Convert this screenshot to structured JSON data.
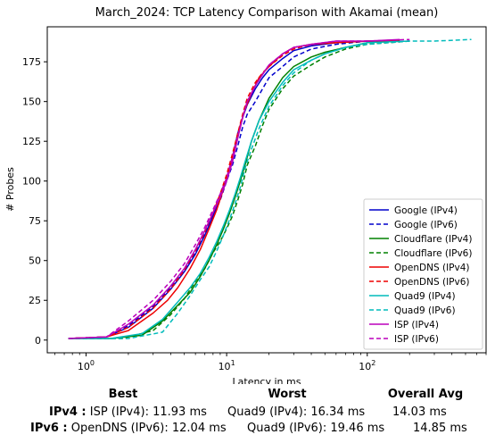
{
  "chart_data": {
    "type": "line",
    "title": "March_2024: TCP Latency Comparison with Akamai (mean)",
    "xlabel": "Latency in ms",
    "ylabel": "# Probes",
    "xscale": "log",
    "xlim": [
      0.53,
      700
    ],
    "ylim": [
      -8,
      197
    ],
    "x_ticks": [
      {
        "value": 1,
        "base": "10",
        "exp": "0"
      },
      {
        "value": 10,
        "base": "10",
        "exp": "1"
      },
      {
        "value": 100,
        "base": "10",
        "exp": "2"
      }
    ],
    "y_ticks": [
      0,
      25,
      50,
      75,
      100,
      125,
      150,
      175
    ],
    "grid": false,
    "legend_position": "bottom-right",
    "series": [
      {
        "name": "Google (IPv4)",
        "color": "#0000cc",
        "dash": "solid",
        "x": [
          0.75,
          1.4,
          2.0,
          3.0,
          4.0,
          5.0,
          6.0,
          7.0,
          8.0,
          9.0,
          10.0,
          11.0,
          12.0,
          13.0,
          14.0,
          16.0,
          18.0,
          20.0,
          25.0,
          30.0,
          40.0,
          60.0,
          100.0,
          170.0
        ],
        "y": [
          1,
          2,
          8,
          20,
          32,
          43,
          54,
          66,
          78,
          90,
          102,
          115,
          130,
          140,
          148,
          158,
          165,
          170,
          177,
          182,
          185,
          187,
          188,
          188
        ]
      },
      {
        "name": "Google (IPv6)",
        "color": "#0000cc",
        "dash": "dashed",
        "x": [
          0.75,
          1.4,
          2.0,
          3.0,
          4.0,
          5.0,
          6.0,
          7.0,
          8.0,
          9.0,
          10.0,
          11.0,
          12.0,
          13.0,
          14.0,
          16.0,
          18.0,
          20.0,
          25.0,
          30.0,
          40.0,
          60.0,
          100.0,
          170.0
        ],
        "y": [
          1,
          2,
          9,
          21,
          33,
          44,
          55,
          67,
          78,
          88,
          100,
          110,
          122,
          134,
          142,
          150,
          158,
          165,
          172,
          178,
          183,
          186,
          188,
          188
        ]
      },
      {
        "name": "Cloudflare (IPv4)",
        "color": "#008000",
        "dash": "solid",
        "x": [
          0.75,
          1.5,
          2.5,
          3.5,
          4.5,
          5.5,
          6.5,
          7.5,
          8.5,
          9.5,
          10.5,
          11.5,
          12.5,
          13.5,
          15.0,
          17.0,
          20.0,
          25.0,
          30.0,
          40.0,
          50.0,
          70.0,
          100.0,
          170.0
        ],
        "y": [
          1,
          1,
          3,
          12,
          22,
          30,
          40,
          50,
          60,
          70,
          80,
          90,
          100,
          110,
          125,
          138,
          152,
          165,
          172,
          178,
          181,
          184,
          187,
          188
        ]
      },
      {
        "name": "Cloudflare (IPv6)",
        "color": "#008000",
        "dash": "dashed",
        "x": [
          0.75,
          1.8,
          3.0,
          4.0,
          5.0,
          6.0,
          7.0,
          8.0,
          9.0,
          10.0,
          11.0,
          12.0,
          13.0,
          14.0,
          16.0,
          18.0,
          20.0,
          25.0,
          30.0,
          40.0,
          50.0,
          70.0,
          100.0,
          200.0
        ],
        "y": [
          1,
          1,
          6,
          16,
          26,
          37,
          45,
          55,
          62,
          70,
          78,
          88,
          98,
          110,
          122,
          135,
          145,
          158,
          166,
          173,
          178,
          183,
          186,
          188
        ]
      },
      {
        "name": "OpenDNS (IPv4)",
        "color": "#ee0000",
        "dash": "solid",
        "x": [
          0.75,
          1.4,
          2.0,
          3.0,
          3.8,
          4.5,
          5.5,
          6.5,
          7.5,
          8.5,
          9.5,
          10.5,
          11.5,
          12.5,
          13.5,
          15.0,
          17.0,
          20.0,
          25.0,
          30.0,
          40.0,
          60.0,
          100.0,
          170.0
        ],
        "y": [
          1,
          2,
          6,
          17,
          25,
          33,
          45,
          57,
          70,
          82,
          95,
          108,
          122,
          135,
          145,
          155,
          165,
          172,
          180,
          184,
          186,
          187,
          188,
          188
        ]
      },
      {
        "name": "OpenDNS (IPv6)",
        "color": "#ee0000",
        "dash": "dashed",
        "x": [
          0.75,
          1.4,
          2.0,
          3.0,
          4.0,
          5.0,
          6.0,
          7.0,
          8.0,
          9.0,
          10.0,
          11.0,
          12.0,
          13.0,
          14.0,
          16.0,
          18.0,
          20.0,
          25.0,
          30.0,
          40.0,
          60.0,
          100.0,
          170.0
        ],
        "y": [
          1,
          2,
          8,
          20,
          32,
          44,
          56,
          68,
          80,
          92,
          104,
          117,
          130,
          142,
          152,
          162,
          168,
          172,
          179,
          183,
          186,
          187,
          188,
          188
        ]
      },
      {
        "name": "Quad9 (IPv4)",
        "color": "#00bbbb",
        "dash": "solid",
        "x": [
          0.75,
          1.5,
          2.5,
          3.5,
          4.5,
          5.5,
          6.5,
          7.5,
          8.5,
          9.5,
          10.5,
          11.5,
          12.5,
          13.5,
          15.0,
          17.0,
          20.0,
          25.0,
          30.0,
          40.0,
          50.0,
          70.0,
          100.0,
          200.0
        ],
        "y": [
          1,
          1,
          4,
          13,
          24,
          33,
          42,
          52,
          62,
          72,
          82,
          92,
          102,
          112,
          125,
          138,
          150,
          162,
          170,
          176,
          180,
          184,
          187,
          188
        ]
      },
      {
        "name": "Quad9 (IPv6)",
        "color": "#00bbbb",
        "dash": "dashed",
        "x": [
          0.75,
          2.0,
          3.5,
          4.5,
          5.5,
          6.5,
          7.5,
          8.5,
          9.5,
          10.5,
          11.5,
          12.5,
          13.5,
          15.0,
          17.0,
          20.0,
          25.0,
          30.0,
          40.0,
          50.0,
          70.0,
          100.0,
          200.0,
          300.0,
          550.0
        ],
        "y": [
          1,
          1,
          5,
          17,
          28,
          38,
          46,
          56,
          66,
          76,
          86,
          96,
          108,
          120,
          133,
          147,
          160,
          168,
          176,
          180,
          184,
          186,
          188,
          188,
          189
        ]
      },
      {
        "name": "ISP (IPv4)",
        "color": "#bb00bb",
        "dash": "solid",
        "x": [
          0.75,
          1.4,
          2.0,
          3.0,
          4.0,
          5.0,
          6.0,
          7.0,
          8.0,
          9.0,
          10.0,
          11.0,
          12.0,
          13.0,
          14.0,
          16.0,
          18.0,
          20.0,
          25.0,
          30.0,
          40.0,
          60.0,
          100.0,
          170.0
        ],
        "y": [
          1,
          2,
          10,
          22,
          34,
          45,
          57,
          69,
          80,
          90,
          100,
          112,
          127,
          140,
          150,
          160,
          167,
          173,
          180,
          184,
          186,
          188,
          188,
          189
        ]
      },
      {
        "name": "ISP (IPv6)",
        "color": "#bb00bb",
        "dash": "dashed",
        "x": [
          0.75,
          1.4,
          2.0,
          3.0,
          4.0,
          5.0,
          6.0,
          7.0,
          8.0,
          9.0,
          10.0,
          11.0,
          12.0,
          13.0,
          14.0,
          16.0,
          18.0,
          20.0,
          25.0,
          30.0,
          40.0,
          60.0,
          100.0,
          200.0
        ],
        "y": [
          1,
          2,
          12,
          25,
          37,
          48,
          60,
          71,
          82,
          92,
          102,
          115,
          128,
          140,
          150,
          160,
          167,
          173,
          180,
          184,
          186,
          188,
          188,
          189
        ]
      }
    ]
  },
  "summary": {
    "best_header": "Best",
    "worst_header": "Worst",
    "avg_header": "Overall Avg",
    "ipv4": {
      "label": "IPv4 :",
      "best": "ISP (IPv4): 11.93 ms",
      "worst": "Quad9 (IPv4): 16.34 ms",
      "avg": "14.03 ms"
    },
    "ipv6": {
      "label": "IPv6 :",
      "best": "OpenDNS (IPv6): 12.04 ms",
      "worst": "Quad9 (IPv6): 19.46 ms",
      "avg": "14.85 ms"
    }
  }
}
